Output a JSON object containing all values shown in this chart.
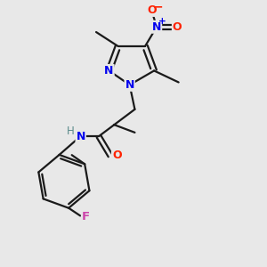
{
  "bg_color": "#e8e8e8",
  "bond_color": "#1a1a1a",
  "nitrogen_color": "#0000ee",
  "oxygen_color": "#ff2200",
  "fluorine_color": "#cc44aa",
  "hydrogen_color": "#5a8a8a",
  "bond_width": 1.6,
  "figsize": [
    3.0,
    3.0
  ],
  "dpi": 100,
  "xlim": [
    0,
    10
  ],
  "ylim": [
    0,
    10
  ]
}
